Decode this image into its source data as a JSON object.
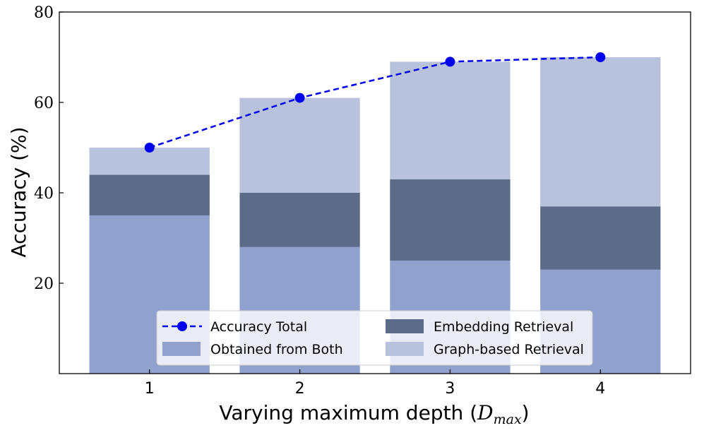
{
  "chart_data": {
    "type": "bar",
    "stacked": true,
    "categories": [
      "1",
      "2",
      "3",
      "4"
    ],
    "series": [
      {
        "name": "Obtained from Both",
        "values": [
          35,
          28,
          25,
          23
        ],
        "color": "#8FA1CC"
      },
      {
        "name": "Embedding Retrieval",
        "values": [
          9,
          12,
          18,
          14
        ],
        "color": "#5C6B87"
      },
      {
        "name": "Graph-based Retrieval",
        "values": [
          6,
          21,
          26,
          33
        ],
        "color": "#B8C2DC"
      }
    ],
    "line": {
      "name": "Accuracy Total",
      "values": [
        50,
        61,
        69,
        70
      ],
      "color": "#0000EE"
    },
    "xlabel_prefix": "Varying maximum depth (",
    "xlabel_symbol": "D",
    "xlabel_subscript": "max",
    "xlabel_suffix": ")",
    "ylabel": "Accuracy (%)",
    "ylim": [
      0,
      80
    ],
    "yticks": [
      "20",
      "40",
      "60",
      "80"
    ],
    "ytick_values": [
      20,
      40,
      60,
      80
    ],
    "legend_location": "lower-center",
    "legend": [
      "Accuracy Total",
      "Embedding Retrieval",
      "Obtained from Both",
      "Graph-based Retrieval"
    ]
  }
}
